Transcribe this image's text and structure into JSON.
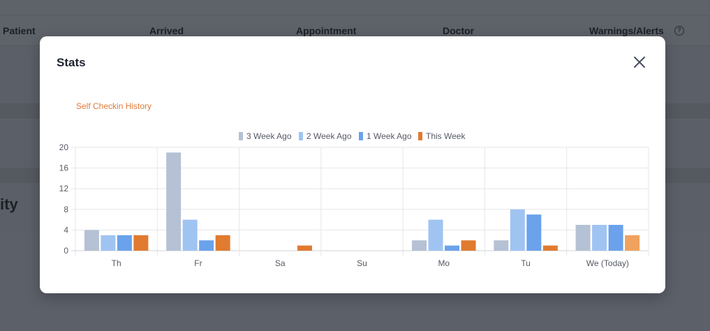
{
  "background": {
    "columns": [
      "Patient",
      "Arrived",
      "Appointment",
      "Doctor",
      "Warnings/Alerts"
    ],
    "help_icon": "?",
    "section_fragment": "ity"
  },
  "modal": {
    "title": "Stats",
    "close_icon": "close-icon"
  },
  "chart_data": {
    "type": "bar",
    "title": "Self Checkin History",
    "categories": [
      "Th",
      "Fr",
      "Sa",
      "Su",
      "Mo",
      "Tu",
      "We (Today)"
    ],
    "series": [
      {
        "name": "3 Week Ago",
        "color": "#b5c1d4",
        "values": [
          4,
          19,
          0,
          0,
          2,
          2,
          5
        ]
      },
      {
        "name": "2 Week Ago",
        "color": "#a0c4f2",
        "values": [
          3,
          6,
          0,
          0,
          6,
          8,
          5
        ]
      },
      {
        "name": "1 Week Ago",
        "color": "#6aa2eb",
        "values": [
          3,
          2,
          0,
          0,
          1,
          7,
          5
        ]
      },
      {
        "name": "This Week",
        "color": "#e07b30",
        "values": [
          3,
          3,
          1,
          0,
          2,
          1,
          3
        ]
      }
    ],
    "today_this_week_color": "#f0a25e",
    "ylim": [
      0,
      20
    ],
    "yticks": [
      0,
      4,
      8,
      12,
      16,
      20
    ],
    "grid": true,
    "legend": "top-center"
  }
}
